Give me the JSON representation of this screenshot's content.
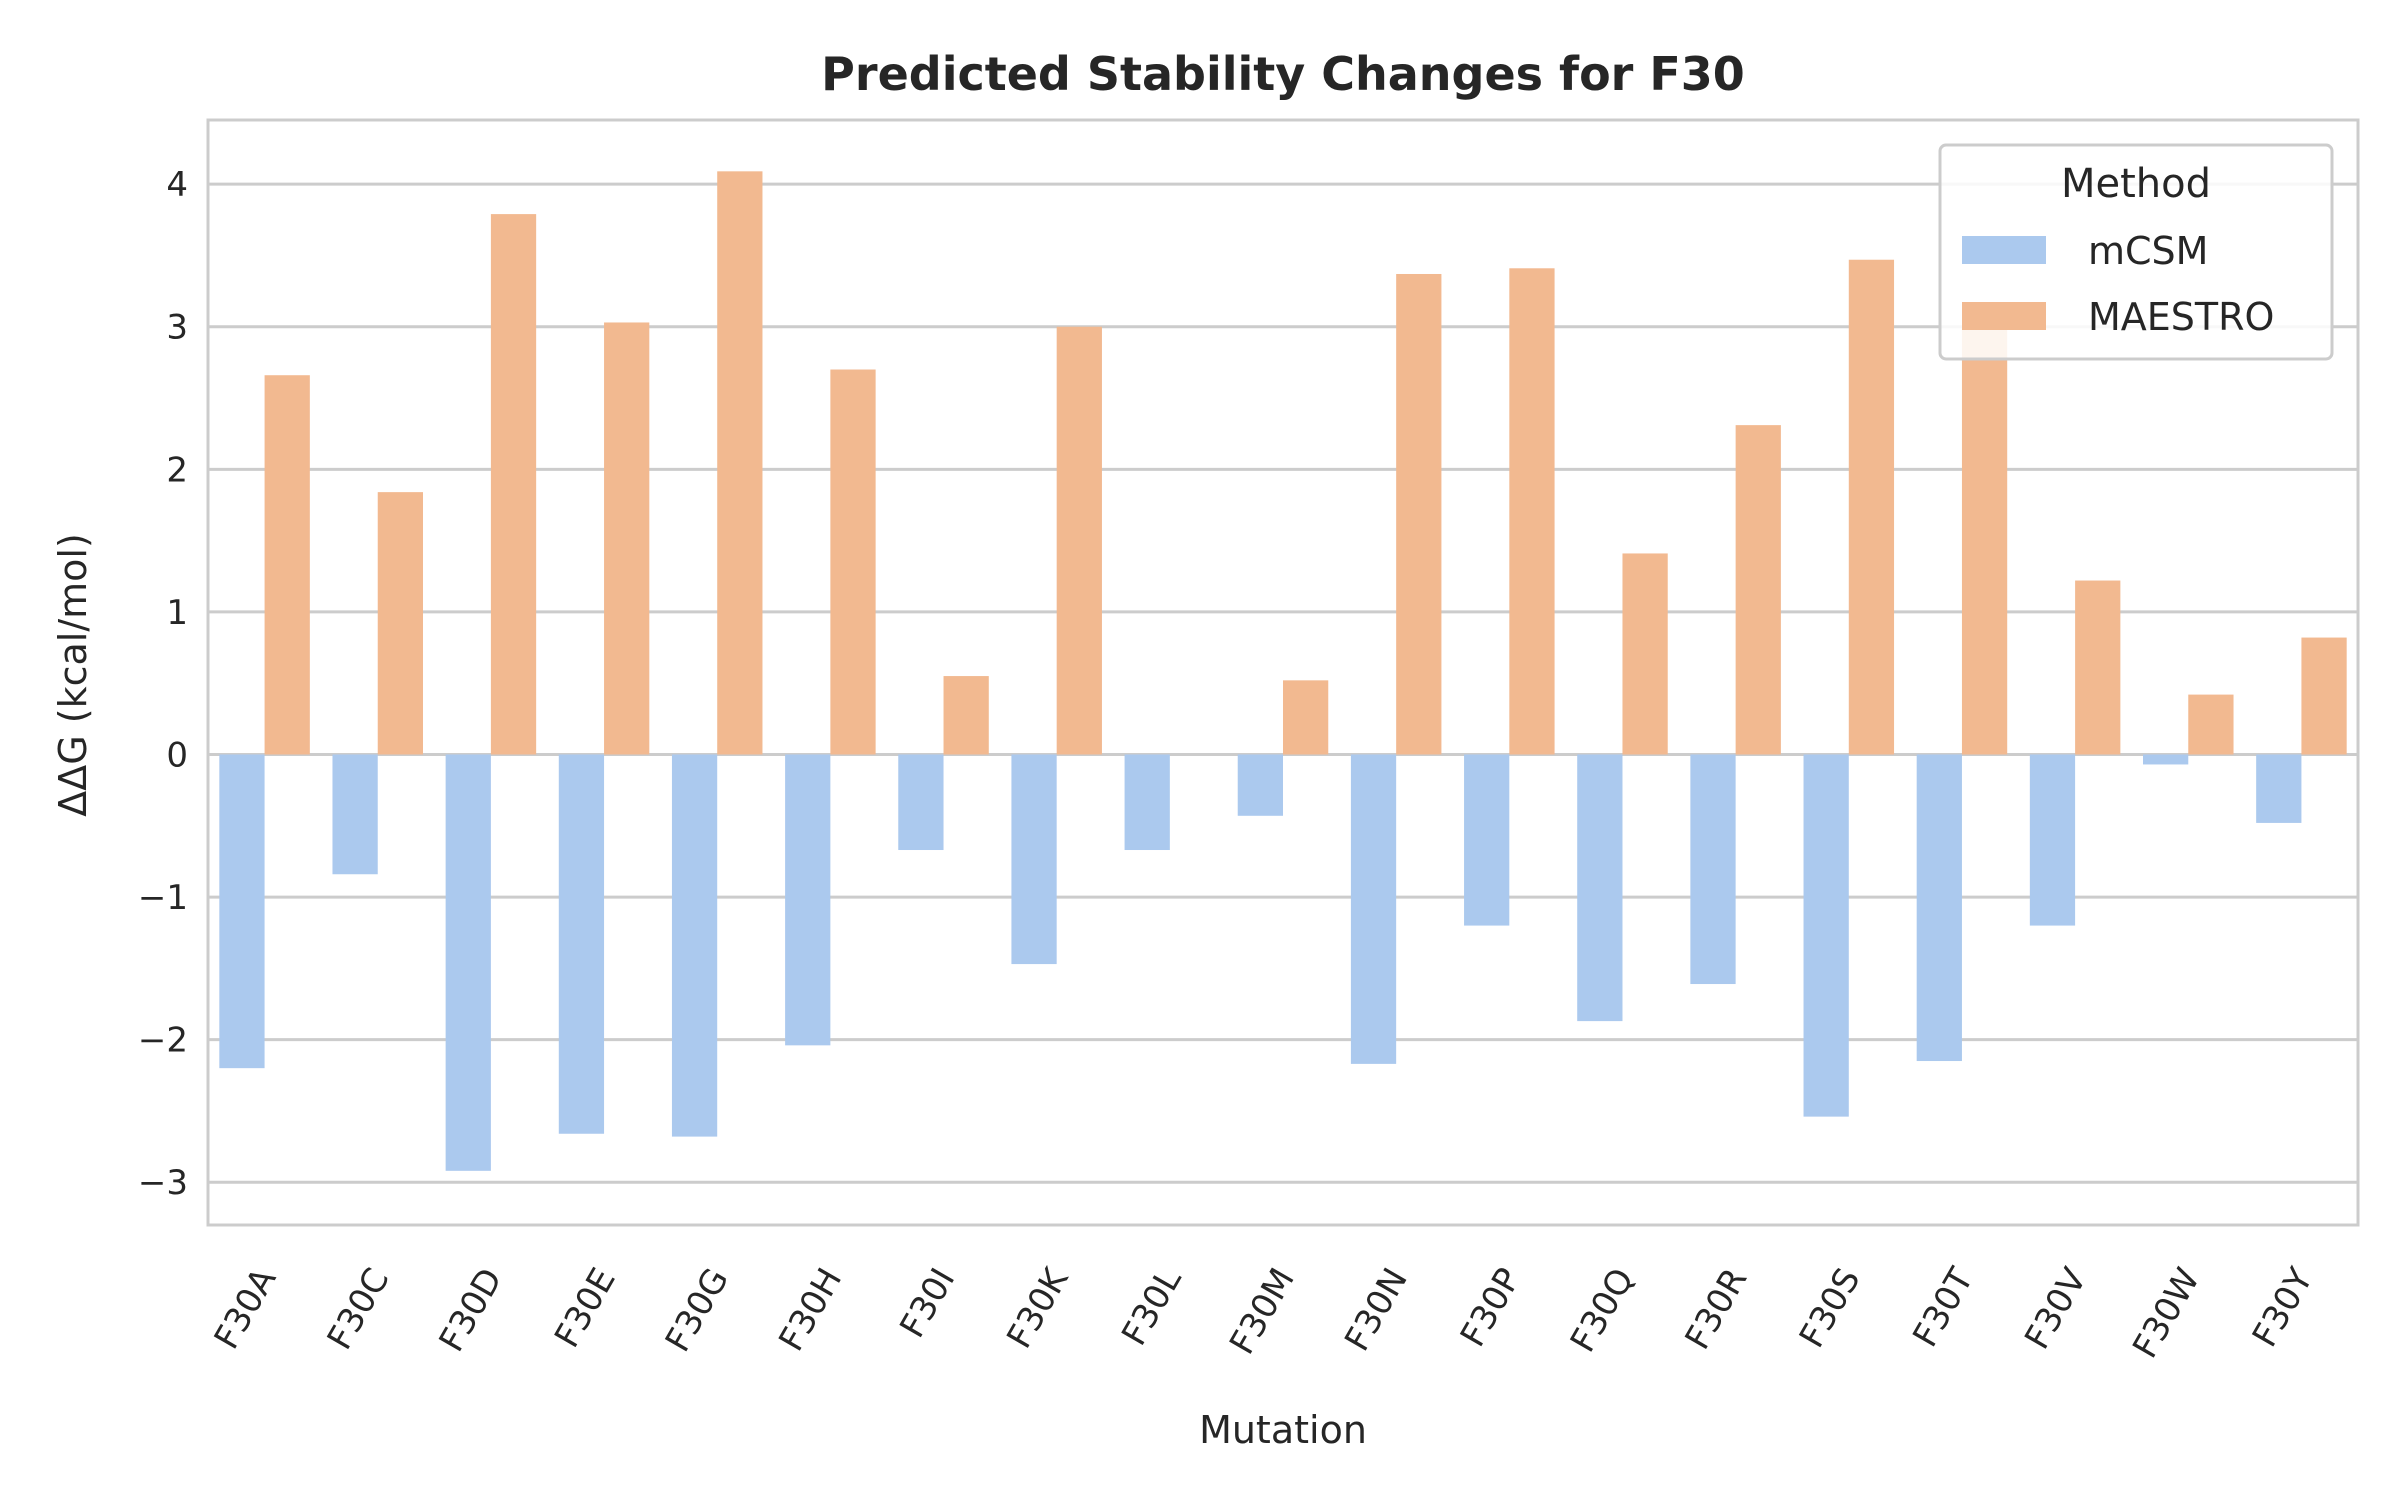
{
  "chart_data": {
    "type": "bar",
    "title": "Predicted Stability Changes for F30",
    "xlabel": "Mutation",
    "ylabel": "ΔΔG (kcal/mol)",
    "ylim": [
      -3.3,
      4.45
    ],
    "yticks": [
      -3,
      -2,
      -1,
      0,
      1,
      2,
      3,
      4
    ],
    "ytick_labels": [
      "−3",
      "−2",
      "−1",
      "0",
      "1",
      "2",
      "3",
      "4"
    ],
    "grid": true,
    "legend": {
      "title": "Method",
      "position": "top-right"
    },
    "categories": [
      "F30A",
      "F30C",
      "F30D",
      "F30E",
      "F30G",
      "F30H",
      "F30I",
      "F30K",
      "F30L",
      "F30M",
      "F30N",
      "F30P",
      "F30Q",
      "F30R",
      "F30S",
      "F30T",
      "F30V",
      "F30W",
      "F30Y"
    ],
    "series": [
      {
        "name": "mCSM",
        "color": "#abc9ee",
        "values": [
          -2.2,
          -0.84,
          -2.92,
          -2.66,
          -2.68,
          -2.04,
          -0.67,
          -1.47,
          -0.67,
          -0.43,
          -2.17,
          -1.2,
          -1.87,
          -1.61,
          -2.54,
          -2.15,
          -1.2,
          -0.07,
          -0.48
        ]
      },
      {
        "name": "MAESTRO",
        "color": "#f2b990",
        "values": [
          2.66,
          1.84,
          3.79,
          3.03,
          4.09,
          2.7,
          0.55,
          3.0,
          0.0,
          0.52,
          3.37,
          3.41,
          1.41,
          2.31,
          3.47,
          3.0,
          1.22,
          0.42,
          0.82
        ]
      }
    ]
  }
}
